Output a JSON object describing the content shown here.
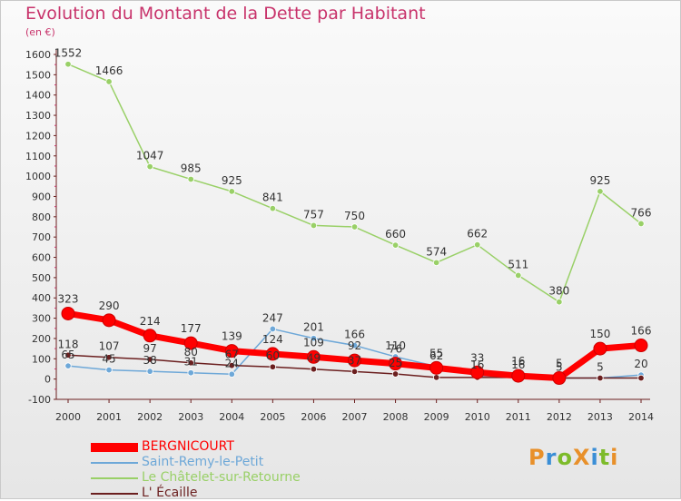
{
  "title": "Evolution du Montant de la Dette par Habitant",
  "unit": "(en €)",
  "logo": {
    "text": "ProXiti",
    "colors": [
      "#e8902a",
      "#3a8ed6",
      "#7dbb2a",
      "#e8902a",
      "#3a8ed6",
      "#7dbb2a",
      "#e8902a"
    ]
  },
  "chart_data": {
    "type": "line",
    "title": "Evolution du Montant de la Dette par Habitant",
    "ylabel": "(en €)",
    "x": [
      "2000",
      "2001",
      "2002",
      "2003",
      "2004",
      "2005",
      "2006",
      "2007",
      "2008",
      "2009",
      "2010",
      "2011",
      "2012",
      "2013",
      "2014"
    ],
    "ylim": [
      -100,
      1600
    ],
    "yticks": [
      "-100",
      "0",
      "100",
      "200",
      "300",
      "400",
      "500",
      "600",
      "700",
      "800",
      "900",
      "1000",
      "1100",
      "1200",
      "1300",
      "1400",
      "1500",
      "1600"
    ],
    "grid": false,
    "legend": "bottom-left",
    "series": [
      {
        "name": "Le Châtelet-sur-Retourne",
        "color": "#99d067",
        "values": [
          1552,
          1466,
          1047,
          985,
          925,
          841,
          757,
          750,
          660,
          574,
          662,
          511,
          380,
          925,
          766
        ],
        "labels": [
          "1552",
          "1466",
          "1047",
          "985",
          "925",
          "841",
          "757",
          "750",
          "660",
          "574",
          "662",
          "511",
          "380",
          "925",
          "766"
        ]
      },
      {
        "name": "Saint-Remy-le-Petit",
        "color": "#6ea8d8",
        "values": [
          65,
          45,
          38,
          31,
          24,
          247,
          201,
          166,
          110,
          62,
          16,
          16,
          5,
          5,
          20
        ],
        "labels": [
          "65",
          "45",
          "38",
          "31",
          "24",
          "247",
          "201",
          "166",
          "110",
          "62",
          "16",
          "16",
          "5",
          "5",
          "20"
        ]
      },
      {
        "name": "L' Écaille",
        "color": "#6b1f1f",
        "values": [
          118,
          107,
          97,
          80,
          67,
          60,
          49,
          37,
          25,
          8,
          8,
          8,
          5,
          5,
          5
        ],
        "labels": [
          "118",
          "107",
          "97",
          "80",
          "67",
          "60",
          "49",
          "37",
          "25",
          "",
          "",
          "",
          "",
          "",
          ""
        ]
      },
      {
        "name": "BERGNICOURT",
        "color": "#ff0000",
        "values": [
          323,
          290,
          214,
          177,
          139,
          124,
          109,
          92,
          76,
          55,
          33,
          16,
          5,
          150,
          166
        ],
        "labels": [
          "323",
          "290",
          "214",
          "177",
          "139",
          "124",
          "109",
          "92",
          "76",
          "55",
          "33",
          "16",
          "5",
          "150",
          "166"
        ]
      }
    ]
  },
  "legend": [
    {
      "label": "BERGNICOURT",
      "color": "#ff0000",
      "thick": true
    },
    {
      "label": "Saint-Remy-le-Petit",
      "color": "#6ea8d8",
      "thick": false
    },
    {
      "label": "Le Châtelet-sur-Retourne",
      "color": "#99d067",
      "thick": false
    },
    {
      "label": "L' Écaille",
      "color": "#6b1f1f",
      "thick": false
    }
  ]
}
